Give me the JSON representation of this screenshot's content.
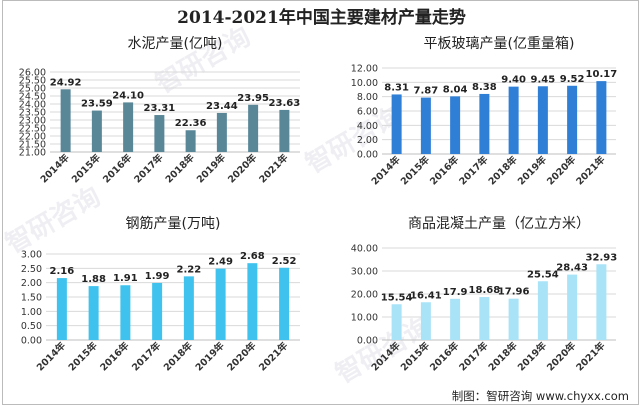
{
  "title": "2014-2021年中国主要建材产量走势",
  "source": "制图：智研咨询 www.chyxx.com",
  "watermark": "智研咨询",
  "chart_data": [
    {
      "type": "bar",
      "title": "水泥产量(亿吨)",
      "categories": [
        "2014年",
        "2015年",
        "2016年",
        "2017年",
        "2018年",
        "2019年",
        "2020年",
        "2021年"
      ],
      "values": [
        24.92,
        23.59,
        24.1,
        23.31,
        22.36,
        23.44,
        23.95,
        23.63
      ],
      "value_labels": [
        "24.92",
        "23.59",
        "24.10",
        "23.31",
        "22.36",
        "23.44",
        "23.95",
        "23.63"
      ],
      "ylim": [
        21,
        26
      ],
      "yticks": [
        21,
        21.5,
        22,
        22.5,
        23,
        23.5,
        24,
        24.5,
        25,
        25.5,
        26
      ],
      "ytick_labels": [
        "21.00",
        "21.50",
        "22.00",
        "22.50",
        "23.00",
        "23.50",
        "24.00",
        "24.50",
        "25.00",
        "25.50",
        "26.00"
      ],
      "color": "#5a8797",
      "grid": true
    },
    {
      "type": "bar",
      "title": "平板玻璃产量(亿重量箱)",
      "categories": [
        "2014年",
        "2015年",
        "2016年",
        "2017年",
        "2018年",
        "2019年",
        "2020年",
        "2021年"
      ],
      "values": [
        8.31,
        7.87,
        8.04,
        8.38,
        9.4,
        9.45,
        9.52,
        10.17
      ],
      "value_labels": [
        "8.31",
        "7.87",
        "8.04",
        "8.38",
        "9.40",
        "9.45",
        "9.52",
        "10.17"
      ],
      "ylim": [
        0,
        12
      ],
      "yticks": [
        0,
        2,
        4,
        6,
        8,
        10,
        12
      ],
      "ytick_labels": [
        "0.00",
        "2.00",
        "4.00",
        "6.00",
        "8.00",
        "10.00",
        "12.00"
      ],
      "color": "#2f7fd6",
      "grid": true
    },
    {
      "type": "bar",
      "title": "钢筋产量(万吨)",
      "categories": [
        "2014年",
        "2015年",
        "2016年",
        "2017年",
        "2018年",
        "2019年",
        "2020年",
        "2021年"
      ],
      "values": [
        2.16,
        1.88,
        1.91,
        1.99,
        2.22,
        2.49,
        2.68,
        2.52
      ],
      "value_labels": [
        "2.16",
        "1.88",
        "1.91",
        "1.99",
        "2.22",
        "2.49",
        "2.68",
        "2.52"
      ],
      "ylim": [
        0,
        3
      ],
      "yticks": [
        0,
        0.5,
        1,
        1.5,
        2,
        2.5,
        3
      ],
      "ytick_labels": [
        "0.00",
        "0.50",
        "1.00",
        "1.50",
        "2.00",
        "2.50",
        "3.00"
      ],
      "color": "#3fc3ee",
      "grid": true
    },
    {
      "type": "bar",
      "title": "商品混凝土产量（亿立方米）",
      "categories": [
        "2014年",
        "2015年",
        "2016年",
        "2017年",
        "2018年",
        "2019年",
        "2020年",
        "2021年"
      ],
      "values": [
        15.54,
        16.41,
        17.9,
        18.68,
        17.96,
        25.54,
        28.43,
        32.93
      ],
      "value_labels": [
        "15.54",
        "16.41",
        "17.9",
        "18.68",
        "17.96",
        "25.54",
        "28.43",
        "32.93"
      ],
      "ylim": [
        0,
        40
      ],
      "yticks": [
        0,
        10,
        20,
        30,
        40
      ],
      "ytick_labels": [
        "0.00",
        "10.00",
        "20.00",
        "30.00",
        "40.00"
      ],
      "color": "#a9e3f7",
      "grid": true
    }
  ]
}
